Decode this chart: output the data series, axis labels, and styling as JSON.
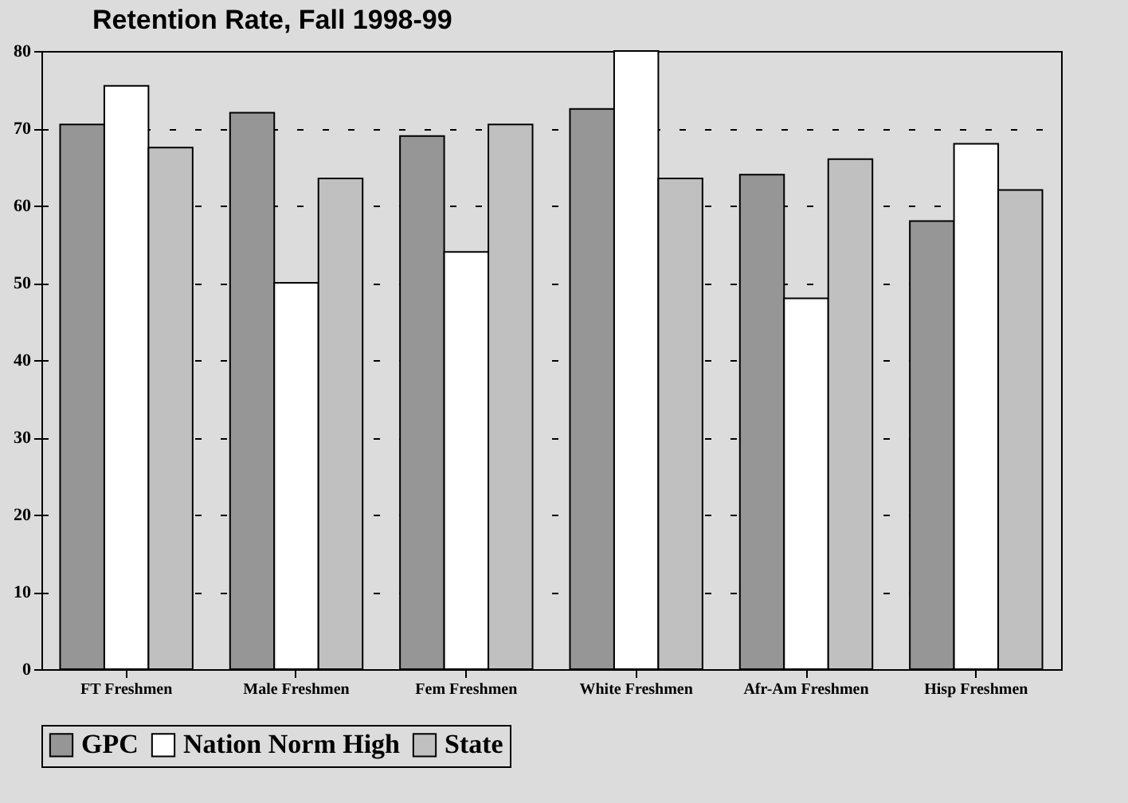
{
  "chart_data": {
    "type": "bar",
    "title": "Retention Rate, Fall 1998-99",
    "categories": [
      "FT Freshmen",
      "Male Freshmen",
      "Fem Freshmen",
      "White Freshmen",
      "Afr-Am Freshmen",
      "Hisp Freshmen"
    ],
    "series": [
      {
        "name": "GPC",
        "color": "#969696",
        "values": [
          70.5,
          72,
          69,
          72.5,
          64,
          58
        ]
      },
      {
        "name": "Nation Norm High",
        "color": "#ffffff",
        "values": [
          75.5,
          50,
          54,
          80,
          48,
          68
        ]
      },
      {
        "name": "State",
        "color": "#c0c0c0",
        "values": [
          67.5,
          63.5,
          70.5,
          63.5,
          66,
          62
        ]
      }
    ],
    "ylim": [
      0,
      80
    ],
    "yticks": [
      0,
      10,
      20,
      30,
      40,
      50,
      60,
      70,
      80
    ],
    "grid": "y",
    "legend": "bottom"
  }
}
